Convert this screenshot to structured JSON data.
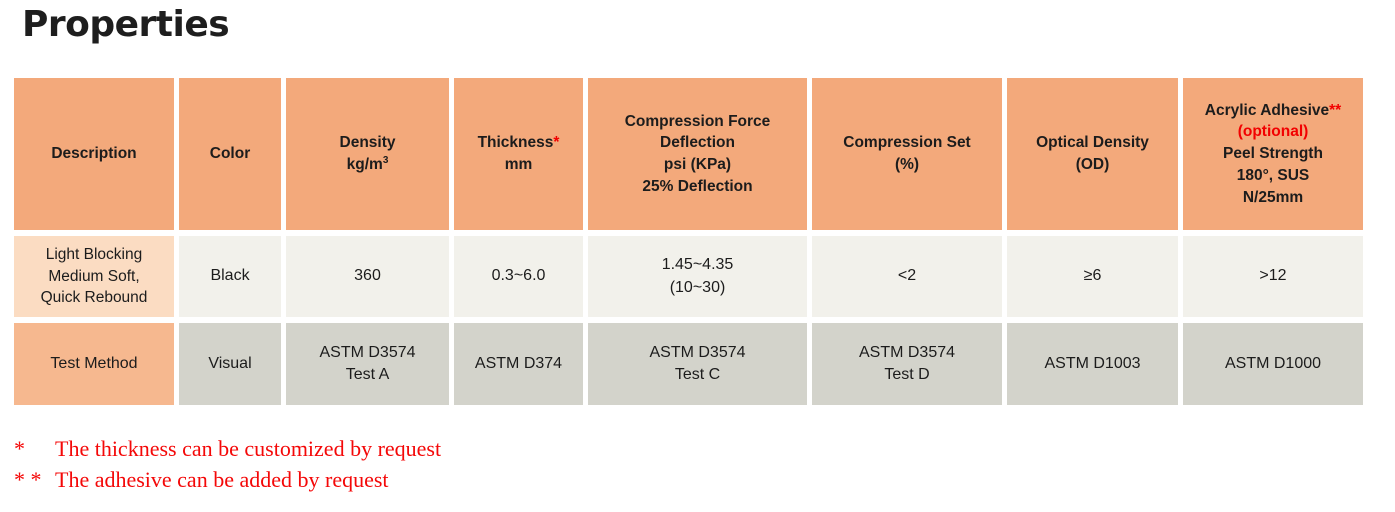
{
  "page": {
    "title": "Properties"
  },
  "colors": {
    "header_bg": "#F3A97B",
    "description_cell_bg": "#FBDCC2",
    "test_label_bg": "#F6B88F",
    "data_row_bg": "#F2F1EB",
    "test_row_bg": "#D3D3CB",
    "accent_red": "#F20000",
    "text_black": "#1C1C1C"
  },
  "table": {
    "headers": {
      "description": "Description",
      "color": "Color",
      "density": {
        "line1": "Density",
        "unit_base": "kg/m",
        "unit_sup": "3"
      },
      "thickness": {
        "base": "Thickness",
        "star": "*",
        "unit": "mm"
      },
      "compression_force": "Compression Force\nDeflection\npsi (KPa)\n25% Deflection",
      "compression_set": "Compression Set\n(%)",
      "optical_density": "Optical Density\n(OD)",
      "adhesive": {
        "base": "Acrylic Adhesive",
        "stars": "**",
        "optional": "(optional)",
        "rest": "Peel Strength\n180°, SUS\nN/25mm"
      }
    },
    "product_row": {
      "description": "Light Blocking\nMedium Soft,\nQuick Rebound",
      "color": "Black",
      "density": "360",
      "thickness": "0.3~6.0",
      "compression_force": "1.45~4.35\n(10~30)",
      "compression_set": "<2",
      "optical_density": "≥6",
      "adhesive": ">12"
    },
    "test_row": {
      "label": "Test Method",
      "color": "Visual",
      "density": "ASTM D3574\nTest A",
      "thickness": "ASTM D374",
      "compression_force": "ASTM D3574\nTest C",
      "compression_set": "ASTM D3574\nTest D",
      "optical_density": "ASTM D1003",
      "adhesive": "ASTM D1000"
    }
  },
  "footnotes": [
    {
      "marker": "*",
      "text": "The thickness can be customized by request"
    },
    {
      "marker": "* *",
      "text": "The adhesive can be added by request"
    }
  ]
}
